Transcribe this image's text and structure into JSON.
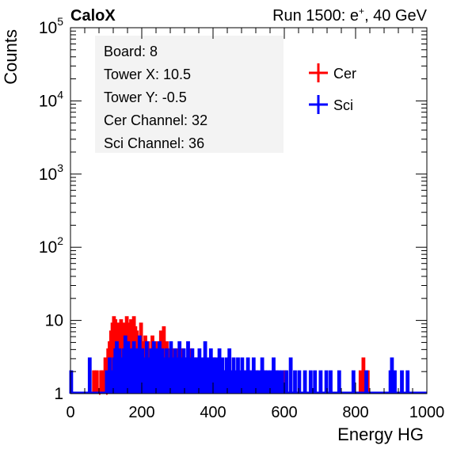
{
  "header": {
    "left_label": "CaloX",
    "run_label": "Run 1500: e",
    "run_sup": "+",
    "run_suffix": ", 40 GeV"
  },
  "info_box": {
    "lines": [
      "Board: 8",
      "Tower X: 10.5",
      "Tower Y: -0.5",
      "Cer Channel: 32",
      "Sci Channel: 36"
    ]
  },
  "chart_data": {
    "type": "histogram",
    "xlabel": "Energy HG",
    "ylabel": "Counts",
    "xlim": [
      0,
      1000
    ],
    "ylim": [
      1,
      100000
    ],
    "y_scale": "log",
    "x_ticks": [
      "0",
      "200",
      "400",
      "600",
      "800",
      "1000"
    ],
    "y_ticks": [
      {
        "value": 1,
        "base": "1",
        "exp": ""
      },
      {
        "value": 10,
        "base": "10",
        "exp": ""
      },
      {
        "value": 100,
        "base": "10",
        "exp": "2"
      },
      {
        "value": 1000,
        "base": "10",
        "exp": "3"
      },
      {
        "value": 10000,
        "base": "10",
        "exp": "4"
      },
      {
        "value": 100000,
        "base": "10",
        "exp": "5"
      }
    ],
    "bin_width": 4,
    "legend_position": "top-right",
    "series": [
      {
        "name": "Cer",
        "color": "#ff0000",
        "bins": [
          [
            64,
            2
          ],
          [
            72,
            2
          ],
          [
            80,
            1
          ],
          [
            84,
            2
          ],
          [
            88,
            2
          ],
          [
            96,
            3
          ],
          [
            100,
            1
          ],
          [
            104,
            4
          ],
          [
            108,
            5
          ],
          [
            112,
            7
          ],
          [
            116,
            9
          ],
          [
            120,
            11
          ],
          [
            124,
            10
          ],
          [
            128,
            8
          ],
          [
            132,
            9
          ],
          [
            136,
            7
          ],
          [
            140,
            10
          ],
          [
            144,
            6
          ],
          [
            148,
            9
          ],
          [
            152,
            8
          ],
          [
            156,
            11
          ],
          [
            160,
            7
          ],
          [
            164,
            9
          ],
          [
            168,
            10
          ],
          [
            172,
            6
          ],
          [
            176,
            11
          ],
          [
            180,
            8
          ],
          [
            184,
            7
          ],
          [
            188,
            5
          ],
          [
            192,
            6
          ],
          [
            196,
            9
          ],
          [
            200,
            5
          ],
          [
            204,
            4
          ],
          [
            208,
            6
          ],
          [
            212,
            4
          ],
          [
            216,
            5
          ],
          [
            220,
            3
          ],
          [
            224,
            4
          ],
          [
            228,
            6
          ],
          [
            232,
            3
          ],
          [
            236,
            4
          ],
          [
            240,
            5
          ],
          [
            244,
            3
          ],
          [
            248,
            4
          ],
          [
            252,
            7
          ],
          [
            256,
            4
          ],
          [
            260,
            8
          ],
          [
            264,
            3
          ],
          [
            268,
            5
          ],
          [
            272,
            2
          ],
          [
            276,
            4
          ],
          [
            280,
            3
          ],
          [
            284,
            4
          ],
          [
            288,
            2
          ],
          [
            292,
            3
          ],
          [
            296,
            4
          ],
          [
            300,
            2
          ],
          [
            304,
            3
          ],
          [
            308,
            2
          ],
          [
            312,
            4
          ],
          [
            316,
            2
          ],
          [
            320,
            3
          ],
          [
            328,
            2
          ],
          [
            336,
            4
          ],
          [
            344,
            2
          ],
          [
            352,
            3
          ],
          [
            360,
            2
          ],
          [
            368,
            2
          ],
          [
            376,
            3
          ],
          [
            384,
            2
          ],
          [
            392,
            2
          ],
          [
            400,
            3
          ],
          [
            412,
            2
          ],
          [
            420,
            2
          ],
          [
            432,
            2
          ],
          [
            444,
            3
          ],
          [
            456,
            2
          ],
          [
            468,
            2
          ],
          [
            484,
            2
          ],
          [
            500,
            2
          ],
          [
            520,
            2
          ],
          [
            540,
            2
          ],
          [
            572,
            2
          ],
          [
            600,
            2
          ],
          [
            812,
            2
          ],
          [
            820,
            3
          ],
          [
            832,
            2
          ]
        ]
      },
      {
        "name": "Sci",
        "color": "#0000ff",
        "bins": [
          [
            0,
            2
          ],
          [
            52,
            3
          ],
          [
            100,
            2
          ],
          [
            108,
            3
          ],
          [
            112,
            2
          ],
          [
            120,
            3
          ],
          [
            124,
            4
          ],
          [
            128,
            5
          ],
          [
            132,
            3
          ],
          [
            136,
            4
          ],
          [
            140,
            3
          ],
          [
            144,
            2
          ],
          [
            148,
            4
          ],
          [
            152,
            6
          ],
          [
            156,
            3
          ],
          [
            160,
            5
          ],
          [
            164,
            3
          ],
          [
            168,
            4
          ],
          [
            172,
            2
          ],
          [
            176,
            5
          ],
          [
            180,
            3
          ],
          [
            184,
            4
          ],
          [
            188,
            2
          ],
          [
            192,
            6
          ],
          [
            196,
            3
          ],
          [
            200,
            4
          ],
          [
            204,
            2
          ],
          [
            208,
            3
          ],
          [
            212,
            5
          ],
          [
            216,
            3
          ],
          [
            220,
            2
          ],
          [
            224,
            4
          ],
          [
            228,
            3
          ],
          [
            232,
            5
          ],
          [
            236,
            2
          ],
          [
            240,
            4
          ],
          [
            244,
            3
          ],
          [
            248,
            5
          ],
          [
            252,
            2
          ],
          [
            256,
            4
          ],
          [
            260,
            3
          ],
          [
            264,
            2
          ],
          [
            268,
            4
          ],
          [
            272,
            3
          ],
          [
            276,
            2
          ],
          [
            280,
            5
          ],
          [
            284,
            3
          ],
          [
            288,
            2
          ],
          [
            292,
            4
          ],
          [
            296,
            3
          ],
          [
            300,
            2
          ],
          [
            304,
            5
          ],
          [
            308,
            3
          ],
          [
            312,
            2
          ],
          [
            316,
            4
          ],
          [
            320,
            3
          ],
          [
            324,
            2
          ],
          [
            328,
            5
          ],
          [
            332,
            3
          ],
          [
            336,
            2
          ],
          [
            340,
            4
          ],
          [
            344,
            3
          ],
          [
            348,
            2
          ],
          [
            352,
            3
          ],
          [
            356,
            2
          ],
          [
            360,
            4
          ],
          [
            364,
            2
          ],
          [
            368,
            3
          ],
          [
            372,
            2
          ],
          [
            376,
            5
          ],
          [
            380,
            2
          ],
          [
            384,
            3
          ],
          [
            388,
            2
          ],
          [
            392,
            4
          ],
          [
            396,
            2
          ],
          [
            400,
            3
          ],
          [
            404,
            2
          ],
          [
            408,
            3
          ],
          [
            412,
            2
          ],
          [
            416,
            4
          ],
          [
            420,
            2
          ],
          [
            424,
            3
          ],
          [
            428,
            2
          ],
          [
            432,
            2
          ],
          [
            436,
            3
          ],
          [
            440,
            2
          ],
          [
            444,
            4
          ],
          [
            448,
            2
          ],
          [
            456,
            3
          ],
          [
            460,
            2
          ],
          [
            468,
            3
          ],
          [
            472,
            2
          ],
          [
            480,
            3
          ],
          [
            488,
            2
          ],
          [
            496,
            3
          ],
          [
            504,
            2
          ],
          [
            512,
            3
          ],
          [
            520,
            2
          ],
          [
            528,
            2
          ],
          [
            536,
            3
          ],
          [
            544,
            2
          ],
          [
            552,
            2
          ],
          [
            560,
            2
          ],
          [
            568,
            3
          ],
          [
            576,
            2
          ],
          [
            584,
            2
          ],
          [
            592,
            2
          ],
          [
            604,
            2
          ],
          [
            616,
            3
          ],
          [
            628,
            2
          ],
          [
            640,
            2
          ],
          [
            656,
            2
          ],
          [
            672,
            2
          ],
          [
            684,
            2
          ],
          [
            700,
            2
          ],
          [
            716,
            2
          ],
          [
            728,
            2
          ],
          [
            752,
            2
          ],
          [
            792,
            2
          ],
          [
            828,
            2
          ],
          [
            896,
            2
          ],
          [
            900,
            3
          ],
          [
            908,
            2
          ],
          [
            928,
            2
          ],
          [
            944,
            2
          ]
        ]
      }
    ]
  }
}
